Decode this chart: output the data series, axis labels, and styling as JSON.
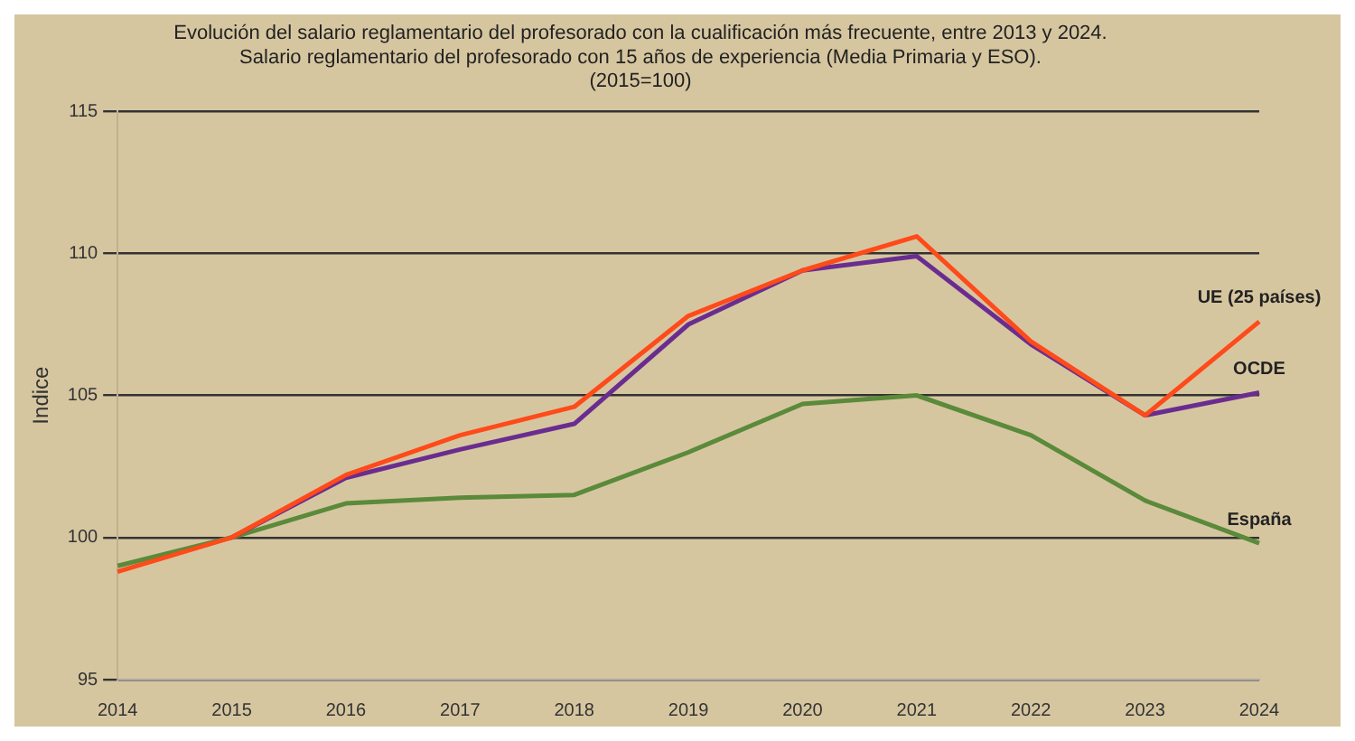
{
  "chart_data": {
    "type": "line",
    "title": "Evolución del salario reglamentario del profesorado con la cualificación más frecuente, entre 2013 y 2024.",
    "subtitle": "Salario reglamentario del profesorado con 15 años de experiencia (Media Primaria y ESO).\n(2015=100)",
    "ylabel": "Indice",
    "categories": [
      "2014",
      "2015",
      "2016",
      "2017",
      "2018",
      "2019",
      "2020",
      "2021",
      "2022",
      "2023",
      "2024"
    ],
    "series": [
      {
        "name": "UE (25 países)",
        "color": "#ff4a1a",
        "values": [
          98.8,
          100,
          102.2,
          103.6,
          104.6,
          107.8,
          109.4,
          110.6,
          106.9,
          104.3,
          107.6
        ]
      },
      {
        "name": "OCDE",
        "color": "#6a2d8f",
        "values": [
          null,
          100,
          102.1,
          103.1,
          104.0,
          107.5,
          109.4,
          109.9,
          106.8,
          104.3,
          105.1
        ]
      },
      {
        "name": "España",
        "color": "#5a8a3a",
        "values": [
          99.0,
          100,
          101.2,
          101.4,
          101.5,
          103.0,
          104.7,
          105.0,
          103.6,
          101.3,
          99.8
        ]
      }
    ],
    "ylim": [
      95,
      115
    ],
    "yticks": [
      95,
      100,
      105,
      110,
      115
    ],
    "grid": "y",
    "legend": false,
    "marker": "none",
    "line_style": "solid"
  }
}
